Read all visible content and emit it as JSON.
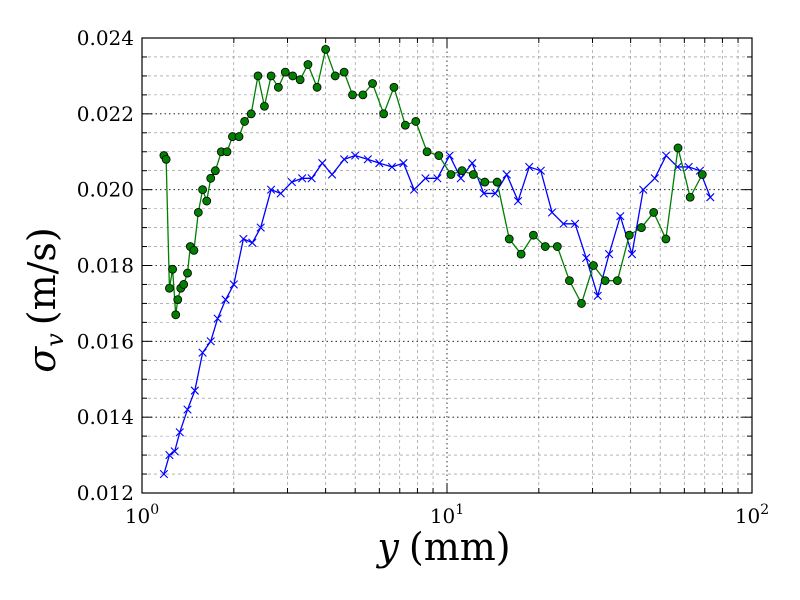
{
  "chart_data": {
    "type": "line",
    "title": "",
    "xlabel": {
      "var": "y",
      "unit": "(mm)"
    },
    "ylabel": {
      "var": "σ",
      "sub": "v",
      "unit": "(m/s)"
    },
    "xscale": "log",
    "xlim": [
      1,
      100
    ],
    "ylim": [
      0.012,
      0.024
    ],
    "grid": true,
    "legend": "none",
    "x_ticks": [
      {
        "value": 1,
        "mantissa": "10",
        "exp": "0"
      },
      {
        "value": 10,
        "mantissa": "10",
        "exp": "1"
      },
      {
        "value": 100,
        "mantissa": "10",
        "exp": "2"
      }
    ],
    "y_ticks": [
      "0.012",
      "0.014",
      "0.016",
      "0.018",
      "0.020",
      "0.022",
      "0.024"
    ],
    "series": [
      {
        "color": "#0000ff",
        "marker": "x",
        "points": [
          [
            1.18,
            0.0125
          ],
          [
            1.23,
            0.013
          ],
          [
            1.28,
            0.0131
          ],
          [
            1.33,
            0.0136
          ],
          [
            1.41,
            0.0142
          ],
          [
            1.49,
            0.0147
          ],
          [
            1.58,
            0.0157
          ],
          [
            1.68,
            0.016
          ],
          [
            1.77,
            0.0166
          ],
          [
            1.88,
            0.0171
          ],
          [
            2.0,
            0.0175
          ],
          [
            2.15,
            0.0187
          ],
          [
            2.3,
            0.0186
          ],
          [
            2.45,
            0.019
          ],
          [
            2.65,
            0.02
          ],
          [
            2.85,
            0.0199
          ],
          [
            3.1,
            0.0202
          ],
          [
            3.35,
            0.0203
          ],
          [
            3.6,
            0.0203
          ],
          [
            3.9,
            0.0207
          ],
          [
            4.2,
            0.0204
          ],
          [
            4.6,
            0.0208
          ],
          [
            5.0,
            0.0209
          ],
          [
            5.5,
            0.0208
          ],
          [
            6.0,
            0.0207
          ],
          [
            6.6,
            0.0206
          ],
          [
            7.2,
            0.0207
          ],
          [
            7.8,
            0.02
          ],
          [
            8.5,
            0.0203
          ],
          [
            9.3,
            0.0203
          ],
          [
            10.2,
            0.0209
          ],
          [
            11.1,
            0.0203
          ],
          [
            12.1,
            0.0207
          ],
          [
            13.2,
            0.0199
          ],
          [
            14.4,
            0.0199
          ],
          [
            15.7,
            0.0204
          ],
          [
            17.1,
            0.0197
          ],
          [
            18.6,
            0.0206
          ],
          [
            20.3,
            0.0205
          ],
          [
            22.1,
            0.0194
          ],
          [
            24.1,
            0.0191
          ],
          [
            26.3,
            0.0191
          ],
          [
            28.6,
            0.0182
          ],
          [
            31.2,
            0.0172
          ],
          [
            34.0,
            0.0183
          ],
          [
            37.0,
            0.0193
          ],
          [
            40.4,
            0.0183
          ],
          [
            44.0,
            0.02
          ],
          [
            48.0,
            0.0203
          ],
          [
            52.3,
            0.0209
          ],
          [
            57.0,
            0.0206
          ],
          [
            62.0,
            0.0206
          ],
          [
            67.5,
            0.0205
          ],
          [
            73.0,
            0.0198
          ]
        ]
      },
      {
        "color": "#007f00",
        "marker": "o",
        "points": [
          [
            1.18,
            0.0209
          ],
          [
            1.2,
            0.0208
          ],
          [
            1.23,
            0.0174
          ],
          [
            1.26,
            0.0179
          ],
          [
            1.29,
            0.0167
          ],
          [
            1.31,
            0.0171
          ],
          [
            1.34,
            0.0174
          ],
          [
            1.37,
            0.0175
          ],
          [
            1.41,
            0.0178
          ],
          [
            1.44,
            0.0185
          ],
          [
            1.48,
            0.0184
          ],
          [
            1.53,
            0.0194
          ],
          [
            1.58,
            0.02
          ],
          [
            1.63,
            0.0197
          ],
          [
            1.68,
            0.0203
          ],
          [
            1.74,
            0.0205
          ],
          [
            1.82,
            0.021
          ],
          [
            1.9,
            0.021
          ],
          [
            1.98,
            0.0214
          ],
          [
            2.08,
            0.0214
          ],
          [
            2.17,
            0.0218
          ],
          [
            2.28,
            0.022
          ],
          [
            2.4,
            0.023
          ],
          [
            2.52,
            0.0222
          ],
          [
            2.65,
            0.023
          ],
          [
            2.8,
            0.0227
          ],
          [
            2.95,
            0.0231
          ],
          [
            3.12,
            0.023
          ],
          [
            3.3,
            0.0229
          ],
          [
            3.5,
            0.0233
          ],
          [
            3.75,
            0.0227
          ],
          [
            4.0,
            0.0237
          ],
          [
            4.3,
            0.023
          ],
          [
            4.6,
            0.0231
          ],
          [
            4.9,
            0.0225
          ],
          [
            5.3,
            0.0225
          ],
          [
            5.7,
            0.0228
          ],
          [
            6.2,
            0.022
          ],
          [
            6.7,
            0.0227
          ],
          [
            7.3,
            0.0217
          ],
          [
            7.9,
            0.0218
          ],
          [
            8.6,
            0.021
          ],
          [
            9.4,
            0.0209
          ],
          [
            10.3,
            0.0204
          ],
          [
            11.2,
            0.0205
          ],
          [
            12.2,
            0.0204
          ],
          [
            13.3,
            0.0202
          ],
          [
            14.6,
            0.0202
          ],
          [
            16.0,
            0.0187
          ],
          [
            17.5,
            0.0183
          ],
          [
            19.2,
            0.0188
          ],
          [
            21.0,
            0.0185
          ],
          [
            23.0,
            0.0185
          ],
          [
            25.2,
            0.0176
          ],
          [
            27.6,
            0.017
          ],
          [
            30.2,
            0.018
          ],
          [
            33.0,
            0.0176
          ],
          [
            36.2,
            0.0176
          ],
          [
            39.6,
            0.0188
          ],
          [
            43.4,
            0.019
          ],
          [
            47.6,
            0.0194
          ],
          [
            52.2,
            0.0187
          ],
          [
            57.2,
            0.0211
          ],
          [
            62.7,
            0.0198
          ],
          [
            68.7,
            0.0204
          ]
        ]
      }
    ]
  }
}
